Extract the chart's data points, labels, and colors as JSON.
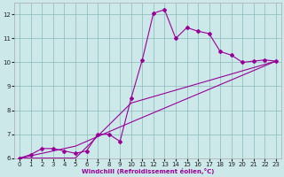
{
  "xlabel": "Windchill (Refroidissement éolien,°C)",
  "bg_color": "#cce8e8",
  "line_color": "#990099",
  "xlim": [
    -0.5,
    23.5
  ],
  "ylim": [
    6,
    12.5
  ],
  "xticks": [
    0,
    1,
    2,
    3,
    4,
    5,
    6,
    7,
    8,
    9,
    10,
    11,
    12,
    13,
    14,
    15,
    16,
    17,
    18,
    19,
    20,
    21,
    22,
    23
  ],
  "yticks": [
    6,
    7,
    8,
    9,
    10,
    11,
    12
  ],
  "line1_x": [
    0,
    1,
    2,
    3,
    4,
    5,
    6,
    7,
    8,
    9,
    10,
    11,
    12,
    13,
    14,
    15,
    16,
    17,
    18,
    19,
    20,
    21,
    22,
    23
  ],
  "line1_y": [
    6.0,
    6.15,
    6.4,
    6.4,
    6.3,
    6.2,
    6.3,
    7.0,
    7.0,
    6.7,
    8.5,
    10.1,
    12.05,
    12.2,
    11.0,
    11.45,
    11.3,
    11.2,
    10.45,
    10.3,
    10.0,
    10.05,
    10.1,
    10.05
  ],
  "line2_x": [
    0,
    5,
    10,
    23
  ],
  "line2_y": [
    6.0,
    6.0,
    8.3,
    10.05
  ],
  "line3_x": [
    0,
    5,
    10,
    23
  ],
  "line3_y": [
    6.0,
    6.5,
    7.5,
    10.05
  ]
}
